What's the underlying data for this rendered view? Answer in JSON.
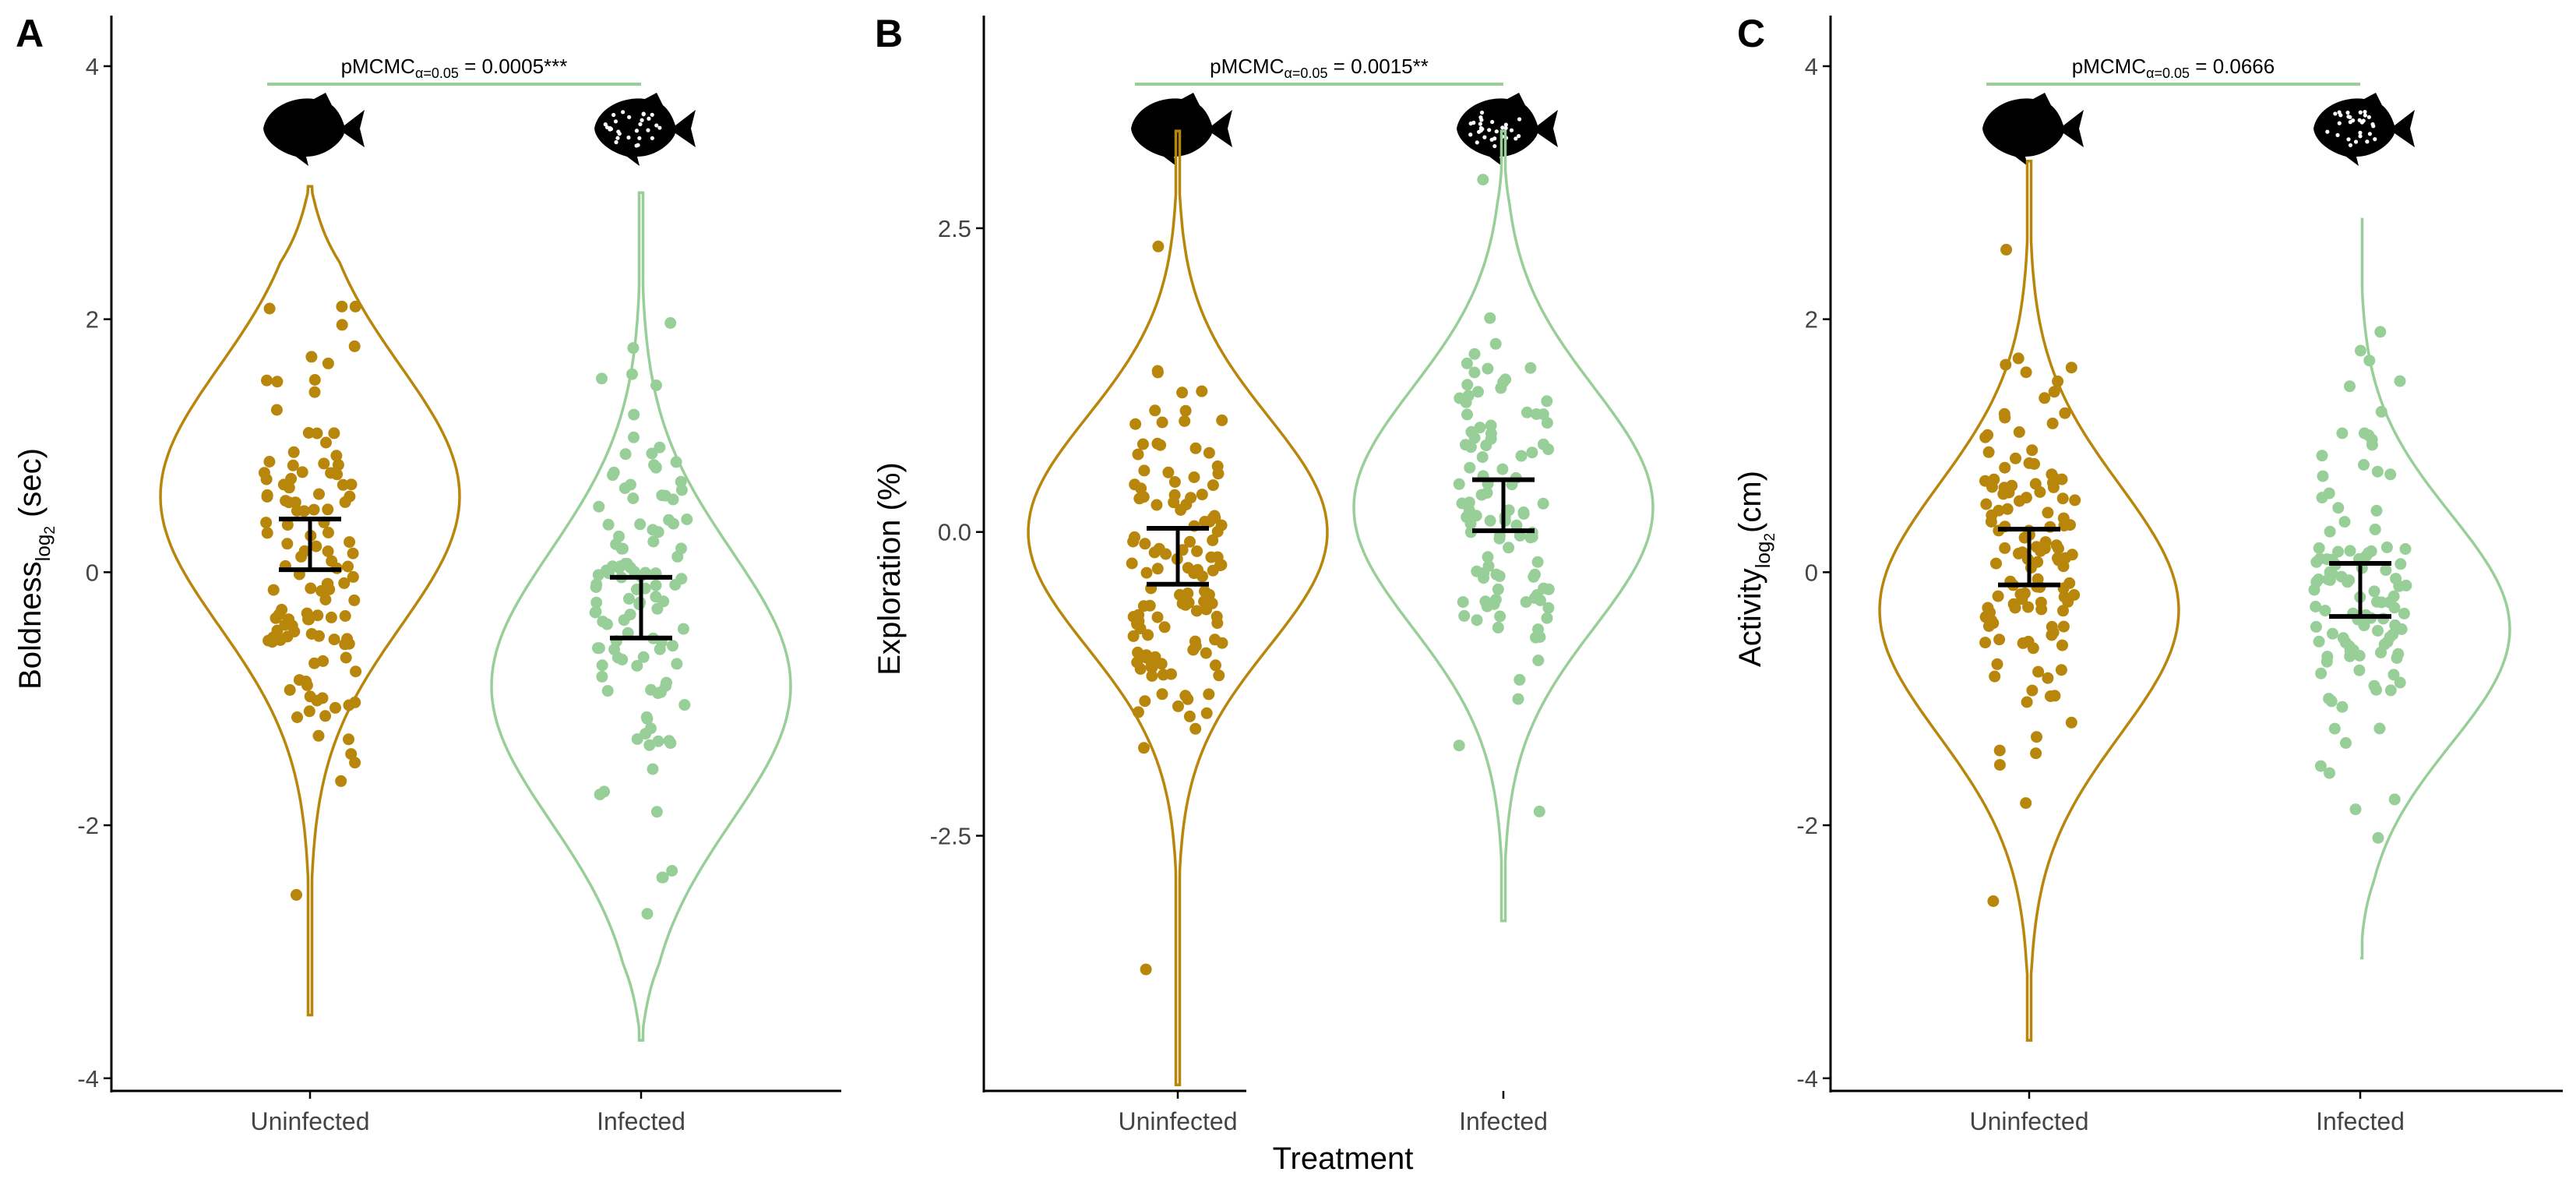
{
  "colors": {
    "uninfected": "#b8860b",
    "infected": "#98cf98",
    "axis": "#000000",
    "mean_bar": "#000000"
  },
  "x_axis_title": "Treatment",
  "chart_data": [
    {
      "panel_label": "A",
      "type": "violin",
      "ylabel_main": "Boldness",
      "ylabel_sub": "log",
      "ylabel_sub2": "2",
      "ylabel_tail": " (sec)",
      "ylim": [
        -4.1,
        4.4
      ],
      "yticks": [
        4,
        2,
        0,
        -2,
        -4
      ],
      "ytick_labels": [
        "4",
        "2",
        "0",
        "-2",
        "-4"
      ],
      "categories": [
        "Uninfected",
        "Infected"
      ],
      "sig_prefix": "pMCMC",
      "sig_sub": "α=0.05",
      "sig_text": " = 0.0005***",
      "series": [
        {
          "name": "Uninfected",
          "mean": 0.22,
          "ci": [
            0.02,
            0.42
          ],
          "violin_range": [
            -3.5,
            3.05
          ],
          "mode": 0.6,
          "spread": 1.3,
          "point_range": [
            -2.55,
            2.1
          ],
          "n": 120,
          "seed": 11
        },
        {
          "name": "Infected",
          "mean": -0.28,
          "ci": [
            -0.52,
            -0.04
          ],
          "violin_range": [
            -3.7,
            3.0
          ],
          "mode": -0.9,
          "spread": 1.35,
          "point_range": [
            -2.7,
            1.97
          ],
          "n": 115,
          "seed": 23
        }
      ]
    },
    {
      "panel_label": "B",
      "type": "violin",
      "ylabel_main": "Exploration (%)",
      "ylabel_sub": "",
      "ylabel_sub2": "",
      "ylabel_tail": "",
      "ylim": [
        -4.6,
        4.25
      ],
      "yticks": [
        2.5,
        0.0,
        -2.5
      ],
      "ytick_labels": [
        "2.5",
        "0.0",
        "-2.5"
      ],
      "categories": [
        "Uninfected",
        "Infected"
      ],
      "sig_prefix": "pMCMC",
      "sig_sub": "α=0.05",
      "sig_text": " = 0.0015**",
      "series": [
        {
          "name": "Uninfected",
          "mean": -0.2,
          "ci": [
            -0.43,
            0.03
          ],
          "violin_range": [
            -4.55,
            3.3
          ],
          "mode": 0.0,
          "spread": 1.2,
          "point_range": [
            -3.6,
            2.35
          ],
          "n": 125,
          "seed": 37
        },
        {
          "name": "Infected",
          "mean": 0.22,
          "ci": [
            0.01,
            0.43
          ],
          "violin_range": [
            -3.2,
            3.3
          ],
          "mode": 0.2,
          "spread": 1.25,
          "point_range": [
            -2.3,
            2.9
          ],
          "n": 105,
          "seed": 41
        }
      ]
    },
    {
      "panel_label": "C",
      "type": "violin",
      "ylabel_main": "Activity",
      "ylabel_sub": "log",
      "ylabel_sub2": "2",
      "ylabel_tail": "(cm)",
      "ylim": [
        -4.1,
        4.4
      ],
      "yticks": [
        4,
        2,
        0,
        -2,
        -4
      ],
      "ytick_labels": [
        "4",
        "2",
        "0",
        "-2",
        "-4"
      ],
      "categories": [
        "Uninfected",
        "Infected"
      ],
      "sig_prefix": "pMCMC",
      "sig_sub": "α=0.05",
      "sig_text": " = 0.0666",
      "series": [
        {
          "name": "Uninfected",
          "mean": 0.12,
          "ci": [
            -0.1,
            0.34
          ],
          "violin_range": [
            -3.7,
            3.25
          ],
          "mode": -0.3,
          "spread": 1.25,
          "point_range": [
            -2.6,
            2.55
          ],
          "n": 125,
          "seed": 53
        },
        {
          "name": "Infected",
          "mean": -0.14,
          "ci": [
            -0.35,
            0.07
          ],
          "violin_range": [
            -3.05,
            2.85
          ],
          "mode": -0.45,
          "spread": 1.15,
          "point_range": [
            -2.1,
            1.9
          ],
          "n": 110,
          "seed": 67
        }
      ]
    }
  ]
}
